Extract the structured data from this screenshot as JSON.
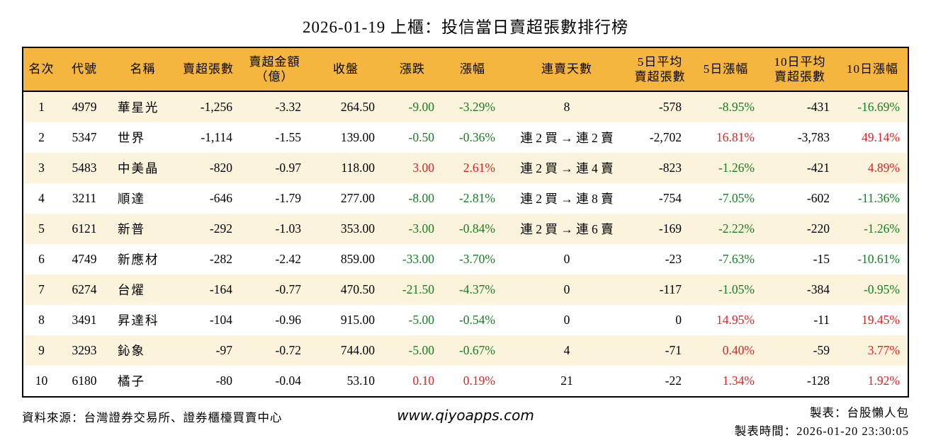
{
  "title": "2026-01-19 上櫃：投信當日賣超張數排行榜",
  "colors": {
    "header_bg": "#f5b640",
    "row_alt_bg": "#fbf3dc",
    "up_red": "#e02222",
    "down_green": "#148021",
    "border": "#000000"
  },
  "chart_data": {
    "type": "table",
    "title": "2026-01-19 上櫃：投信當日賣超張數排行榜",
    "columns": [
      {
        "key": "rank",
        "label": "名次",
        "align": "center"
      },
      {
        "key": "code",
        "label": "代號",
        "align": "center"
      },
      {
        "key": "name",
        "label": "名稱",
        "align": "left"
      },
      {
        "key": "sell_volume",
        "label": "賣超張數",
        "align": "right"
      },
      {
        "key": "sell_amount",
        "label": "賣超金額\n（億）",
        "align": "right"
      },
      {
        "key": "close",
        "label": "收盤",
        "align": "right"
      },
      {
        "key": "change",
        "label": "漲跌",
        "align": "right"
      },
      {
        "key": "change_pct",
        "label": "漲幅",
        "align": "right"
      },
      {
        "key": "streak",
        "label": "連賣天數",
        "align": "center"
      },
      {
        "key": "avg5_sell",
        "label": "5日平均\n賣超張數",
        "align": "right"
      },
      {
        "key": "chg5",
        "label": "5日漲幅",
        "align": "right"
      },
      {
        "key": "avg10_sell",
        "label": "10日平均\n賣超張數",
        "align": "right"
      },
      {
        "key": "chg10",
        "label": "10日漲幅",
        "align": "right"
      }
    ],
    "rows": [
      [
        "1",
        "4979",
        "華星光",
        "-1,256",
        "-3.32",
        "264.50",
        {
          "v": "-9.00",
          "c": "down"
        },
        {
          "v": "-3.29%",
          "c": "down"
        },
        "8",
        "-578",
        {
          "v": "-8.95%",
          "c": "down"
        },
        "-431",
        {
          "v": "-16.69%",
          "c": "down"
        }
      ],
      [
        "2",
        "5347",
        "世界",
        "-1,114",
        "-1.55",
        "139.00",
        {
          "v": "-0.50",
          "c": "down"
        },
        {
          "v": "-0.36%",
          "c": "down"
        },
        "連 2 買 → 連 2 賣",
        "-2,702",
        {
          "v": "16.81%",
          "c": "up"
        },
        "-3,783",
        {
          "v": "49.14%",
          "c": "up"
        }
      ],
      [
        "3",
        "5483",
        "中美晶",
        "-820",
        "-0.97",
        "118.00",
        {
          "v": "3.00",
          "c": "up"
        },
        {
          "v": "2.61%",
          "c": "up"
        },
        "連 2 買 → 連 4 賣",
        "-823",
        {
          "v": "-1.26%",
          "c": "down"
        },
        "-421",
        {
          "v": "4.89%",
          "c": "up"
        }
      ],
      [
        "4",
        "3211",
        "順達",
        "-646",
        "-1.79",
        "277.00",
        {
          "v": "-8.00",
          "c": "down"
        },
        {
          "v": "-2.81%",
          "c": "down"
        },
        "連 2 買 → 連 8 賣",
        "-754",
        {
          "v": "-7.05%",
          "c": "down"
        },
        "-602",
        {
          "v": "-11.36%",
          "c": "down"
        }
      ],
      [
        "5",
        "6121",
        "新普",
        "-292",
        "-1.03",
        "353.00",
        {
          "v": "-3.00",
          "c": "down"
        },
        {
          "v": "-0.84%",
          "c": "down"
        },
        "連 2 買 → 連 6 賣",
        "-169",
        {
          "v": "-2.22%",
          "c": "down"
        },
        "-220",
        {
          "v": "-1.26%",
          "c": "down"
        }
      ],
      [
        "6",
        "4749",
        "新應材",
        "-282",
        "-2.42",
        "859.00",
        {
          "v": "-33.00",
          "c": "down"
        },
        {
          "v": "-3.70%",
          "c": "down"
        },
        "0",
        "-23",
        {
          "v": "-7.63%",
          "c": "down"
        },
        "-15",
        {
          "v": "-10.61%",
          "c": "down"
        }
      ],
      [
        "7",
        "6274",
        "台燿",
        "-164",
        "-0.77",
        "470.50",
        {
          "v": "-21.50",
          "c": "down"
        },
        {
          "v": "-4.37%",
          "c": "down"
        },
        "0",
        "-117",
        {
          "v": "-1.05%",
          "c": "down"
        },
        "-384",
        {
          "v": "-0.95%",
          "c": "down"
        }
      ],
      [
        "8",
        "3491",
        "昇達科",
        "-104",
        "-0.96",
        "915.00",
        {
          "v": "-5.00",
          "c": "down"
        },
        {
          "v": "-0.54%",
          "c": "down"
        },
        "0",
        "0",
        {
          "v": "14.95%",
          "c": "up"
        },
        "-11",
        {
          "v": "19.45%",
          "c": "up"
        }
      ],
      [
        "9",
        "3293",
        "鈊象",
        "-97",
        "-0.72",
        "744.00",
        {
          "v": "-5.00",
          "c": "down"
        },
        {
          "v": "-0.67%",
          "c": "down"
        },
        "4",
        "-71",
        {
          "v": "0.40%",
          "c": "up"
        },
        "-59",
        {
          "v": "3.77%",
          "c": "up"
        }
      ],
      [
        "10",
        "6180",
        "橘子",
        "-80",
        "-0.04",
        "53.10",
        {
          "v": "0.10",
          "c": "up"
        },
        {
          "v": "0.19%",
          "c": "up"
        },
        "21",
        "-22",
        {
          "v": "1.34%",
          "c": "up"
        },
        "-128",
        {
          "v": "1.92%",
          "c": "up"
        }
      ]
    ]
  },
  "footer": {
    "source": "資料來源：台灣證券交易所、證券櫃檯買賣中心",
    "website": "www.qiyoapps.com",
    "maker": "製表：台股懶人包",
    "made_time": "製表時間：2026-01-20 23:30:05"
  }
}
